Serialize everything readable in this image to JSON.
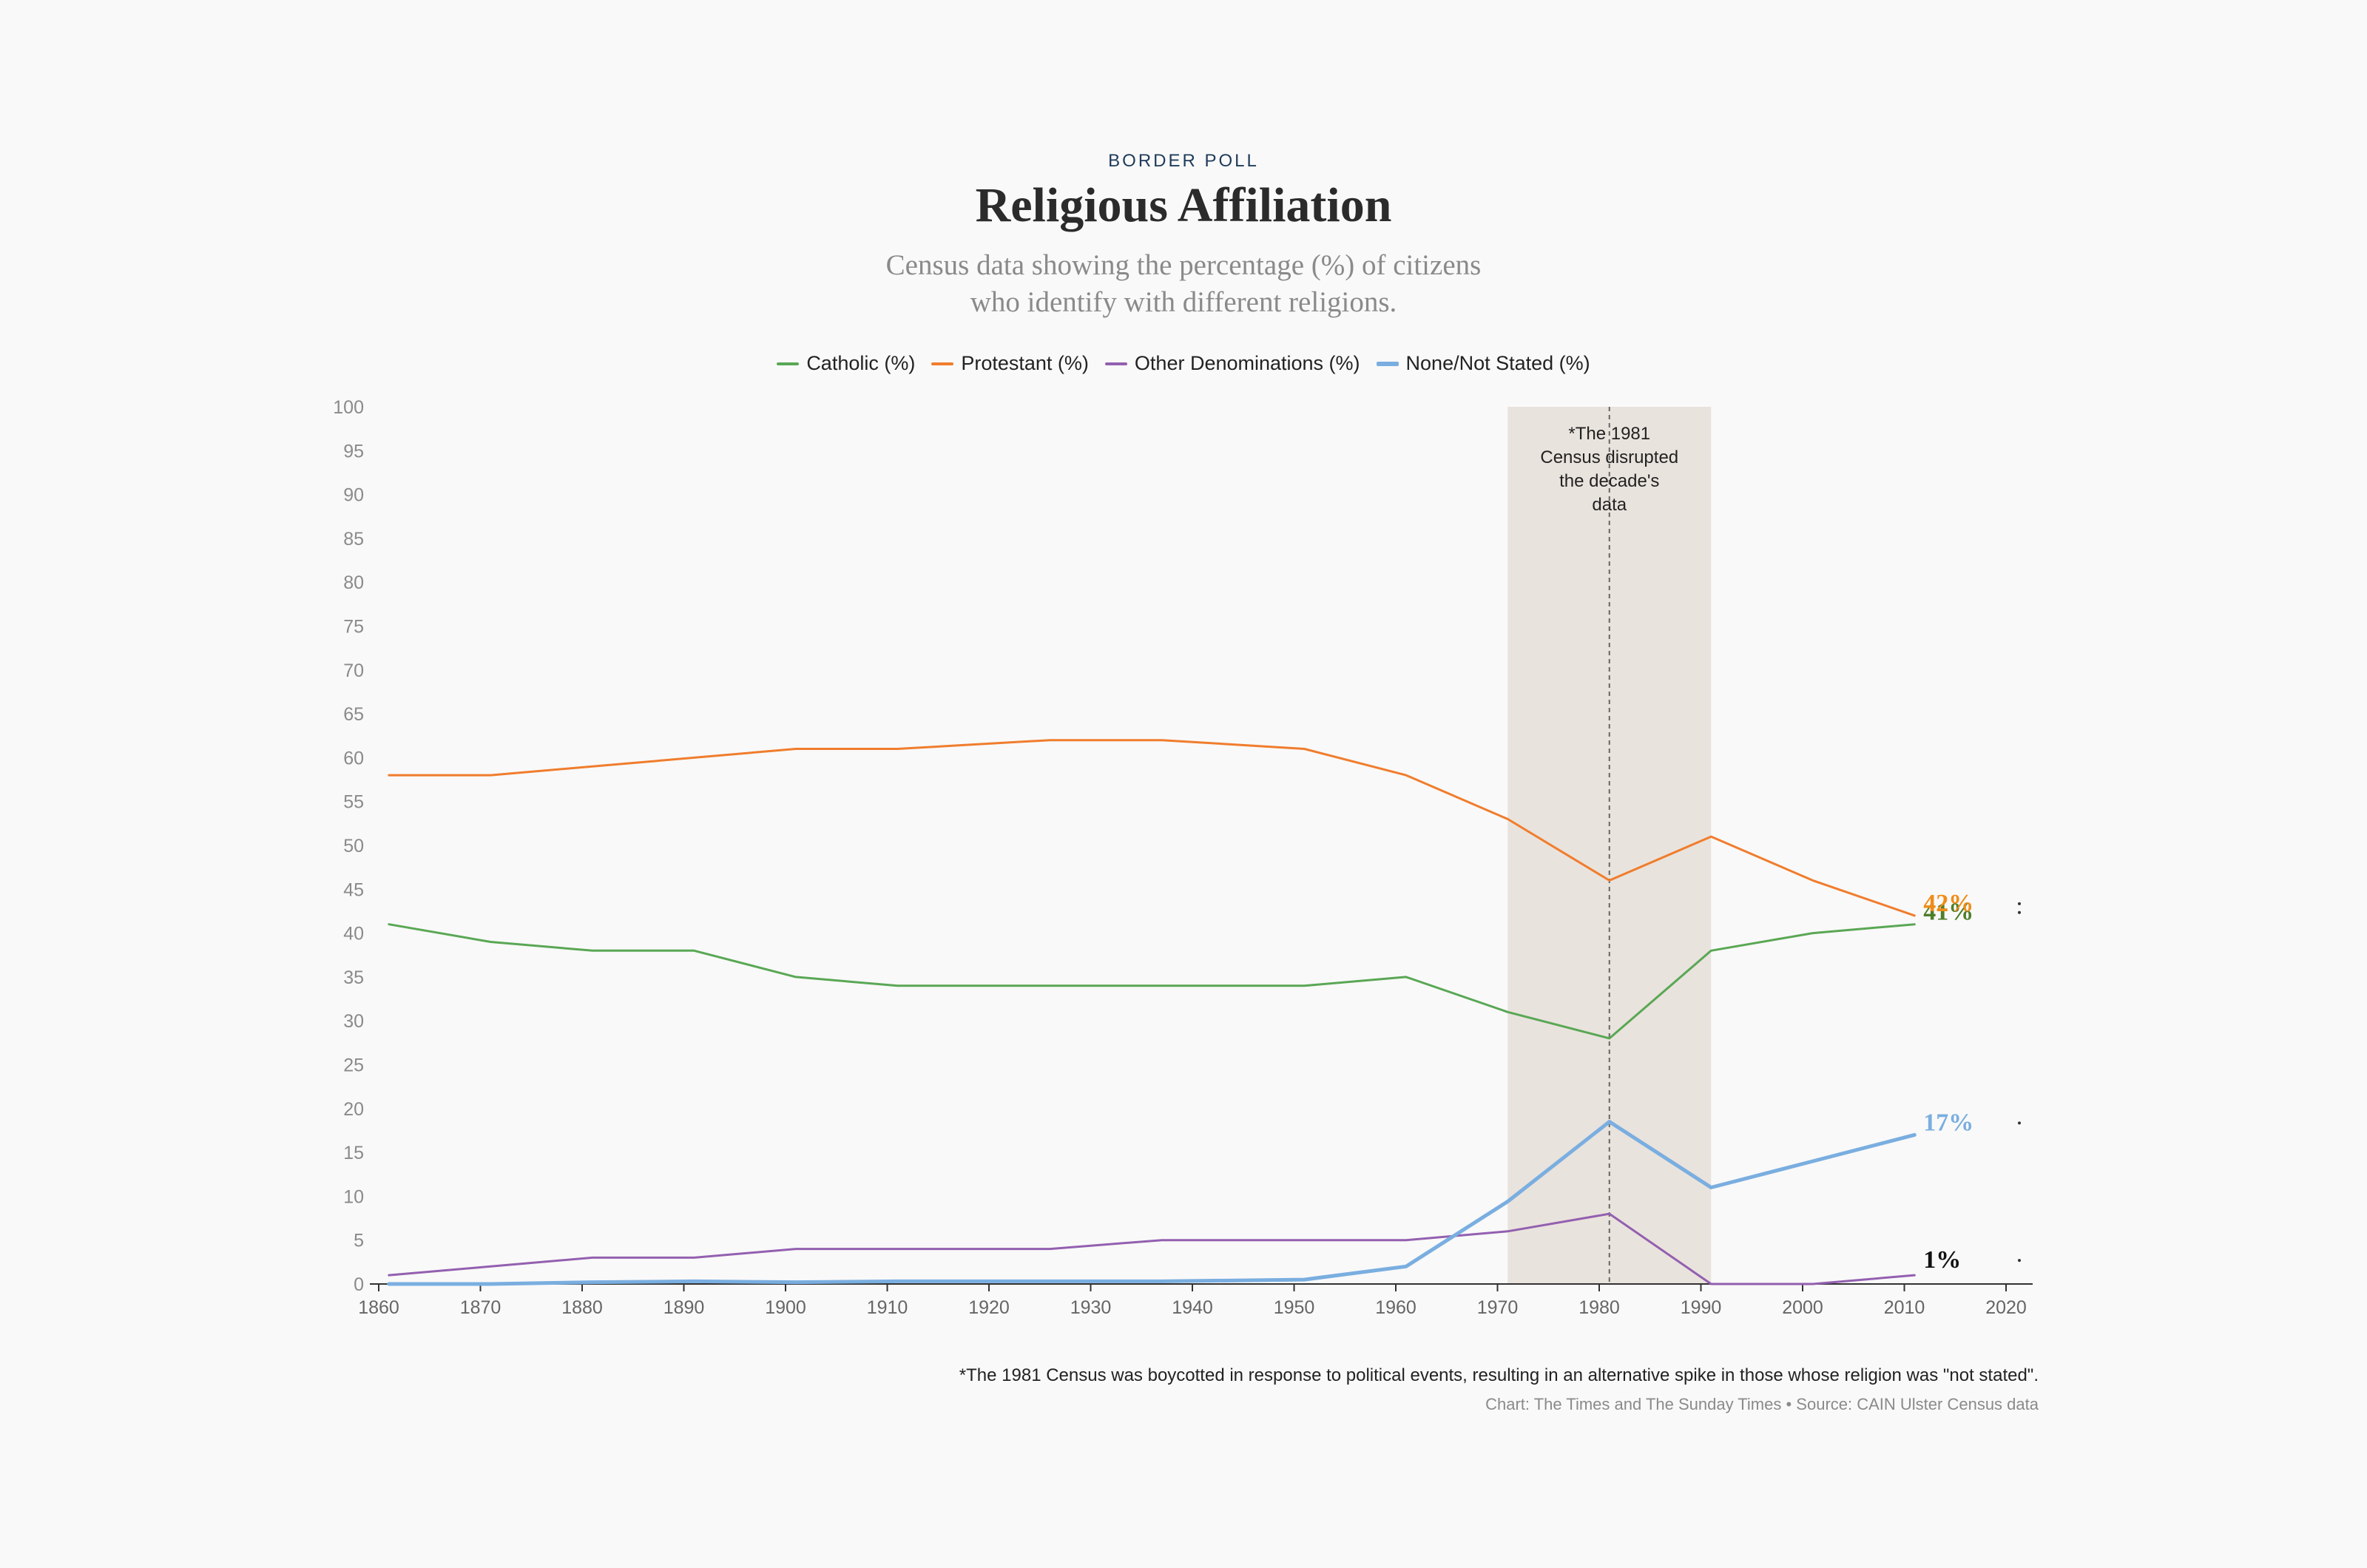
{
  "header": {
    "kicker": "BORDER POLL",
    "title": "Religious Affiliation",
    "subtitle_line1": "Census data showing the percentage (%) of citizens",
    "subtitle_line2": "who identify with different religions."
  },
  "legend": [
    {
      "label": "Catholic (%)",
      "color": "#5aa755"
    },
    {
      "label": "Protestant (%)",
      "color": "#f07d2d"
    },
    {
      "label": "Other Denominations (%)",
      "color": "#9360b0"
    },
    {
      "label": "None/Not Stated (%)",
      "color": "#7aaee0"
    }
  ],
  "chart_data": {
    "type": "line",
    "xlim": [
      1860,
      2020
    ],
    "ylim": [
      0,
      100
    ],
    "x_ticks": [
      1860,
      1870,
      1880,
      1890,
      1900,
      1910,
      1920,
      1930,
      1940,
      1950,
      1960,
      1970,
      1980,
      1990,
      2000,
      2010,
      2020
    ],
    "y_ticks": [
      0,
      5,
      10,
      15,
      20,
      25,
      30,
      35,
      40,
      45,
      50,
      55,
      60,
      65,
      70,
      75,
      80,
      85,
      90,
      95,
      100
    ],
    "grid": false,
    "legend_position": "top-center",
    "series": [
      {
        "name": "Catholic (%)",
        "color": "#5aa755",
        "x": [
          1861,
          1871,
          1881,
          1891,
          1901,
          1911,
          1926,
          1937,
          1951,
          1961,
          1971,
          1981,
          1991,
          2001,
          2011
        ],
        "values": [
          41,
          39,
          38,
          38,
          35,
          34,
          34,
          34,
          34,
          35,
          31,
          28,
          38,
          40,
          41
        ],
        "end_label": "41%",
        "end_label_color": "#4e7e2a"
      },
      {
        "name": "Protestant (%)",
        "color": "#f07d2d",
        "x": [
          1861,
          1871,
          1881,
          1891,
          1901,
          1911,
          1926,
          1937,
          1951,
          1961,
          1971,
          1981,
          1991,
          2001,
          2011
        ],
        "values": [
          58,
          58,
          59,
          60,
          61,
          61,
          62,
          62,
          61,
          58,
          53,
          46,
          51,
          46,
          42
        ],
        "end_label": "42%",
        "end_label_color": "#f08c17"
      },
      {
        "name": "Other Denominations (%)",
        "color": "#9360b0",
        "x": [
          1861,
          1871,
          1881,
          1891,
          1901,
          1911,
          1926,
          1937,
          1951,
          1961,
          1971,
          1981,
          1991,
          2001,
          2011
        ],
        "values": [
          1,
          2,
          3,
          3,
          4,
          4,
          4,
          5,
          5,
          5,
          6,
          8,
          0,
          0,
          1
        ],
        "end_label": "1%",
        "end_label_color": "#111111"
      },
      {
        "name": "None/Not Stated (%)",
        "color": "#7aaee0",
        "x": [
          1861,
          1871,
          1881,
          1891,
          1901,
          1911,
          1926,
          1937,
          1951,
          1961,
          1971,
          1981,
          1991,
          2001,
          2011
        ],
        "values": [
          0,
          0,
          0.2,
          0.3,
          0.2,
          0.3,
          0.3,
          0.3,
          0.5,
          2,
          9.4,
          18.5,
          11,
          14,
          17
        ],
        "end_label": "17%",
        "end_label_color": "#7aaee0"
      }
    ],
    "annotation": {
      "x_range": [
        1971,
        1991
      ],
      "marker_x": 1981,
      "lines": [
        "*The 1981",
        "Census disrupted",
        "the decade's",
        "data"
      ],
      "band_color": "#e9e3dd"
    }
  },
  "footer": {
    "footnote": "*The 1981 Census was boycotted in response to political events, resulting in an alternative spike in those whose religion was \"not stated\".",
    "credit": "Chart: The Times and The Sunday Times • Source: CAIN Ulster Census data"
  }
}
